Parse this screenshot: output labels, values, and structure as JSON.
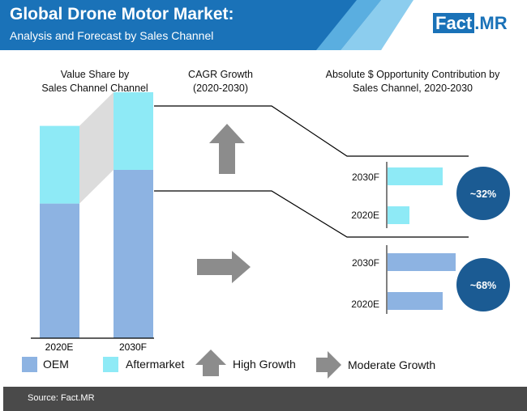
{
  "header": {
    "title": "Global Drone Motor Market:",
    "subtitle": "Analysis and Forecast by Sales Channel",
    "logo_main": "Fact",
    "logo_suffix": ".MR",
    "brand_color": "#1a72b8"
  },
  "columns": {
    "value_share_line1": "Value Share by",
    "value_share_line2": "Sales Channel Channel",
    "cagr_line1": "CAGR Growth",
    "cagr_line2": "(2020-2030)",
    "opportunity_line1": "Absolute $ Opportunity Contribution by",
    "opportunity_line2": "Sales Channel, 2020-2030"
  },
  "chart_data": [
    {
      "type": "bar",
      "subtype": "stacked",
      "title": "Value Share by Sales Channel Channel",
      "categories": [
        "2020E",
        "2030F"
      ],
      "series": [
        {
          "name": "OEM",
          "values": [
            52,
            65
          ],
          "color": "#8db3e2"
        },
        {
          "name": "Aftermarket",
          "values": [
            30,
            30
          ],
          "color": "#8eeaf6"
        }
      ],
      "ylim": [
        0,
        100
      ]
    },
    {
      "type": "bar",
      "orientation": "horizontal",
      "title": "Absolute $ Opportunity Contribution by Sales Channel, 2020-2030",
      "groups": [
        {
          "name": "Aftermarket",
          "share_label": "~32%",
          "categories": [
            "2030F",
            "2020E"
          ],
          "values": [
            68,
            27
          ],
          "color": "#8eeaf6",
          "growth": "High Growth"
        },
        {
          "name": "OEM",
          "share_label": "~68%",
          "categories": [
            "2030F",
            "2020E"
          ],
          "values": [
            84,
            68
          ],
          "color": "#8db3e2",
          "growth": "Moderate Growth"
        }
      ],
      "xlim": [
        0,
        100
      ]
    }
  ],
  "legend": {
    "oem": "OEM",
    "aftermarket": "Aftermarket",
    "high_growth": "High Growth",
    "moderate_growth": "Moderate Growth"
  },
  "footer": {
    "source": "Source: Fact.MR"
  }
}
